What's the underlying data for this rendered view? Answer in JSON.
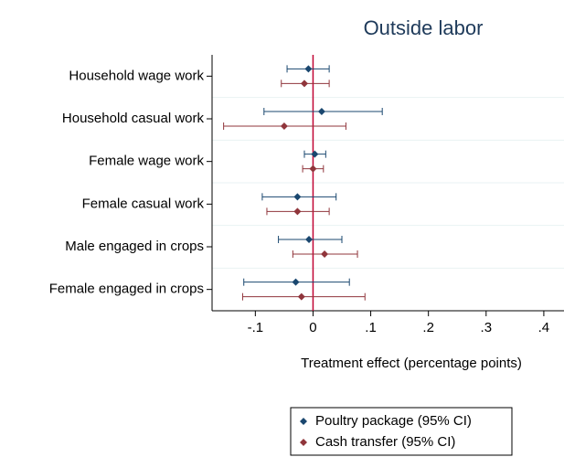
{
  "chart_data": {
    "type": "coefplot",
    "title": "Outside labor",
    "xlabel": "Treatment effect (percentage points)",
    "categories": [
      "Household wage work",
      "Household casual work",
      "Female wage work",
      "Female casual work",
      "Male engaged in crops",
      "Female engaged in crops"
    ],
    "series": [
      {
        "name": "Poultry package (95% CI)",
        "color": "#1a476f",
        "values": [
          -0.008,
          0.015,
          0.003,
          -0.027,
          -0.007,
          -0.03
        ],
        "lower": [
          -0.045,
          -0.085,
          -0.015,
          -0.088,
          -0.06,
          -0.12
        ],
        "upper": [
          0.028,
          0.12,
          0.022,
          0.04,
          0.05,
          0.063
        ]
      },
      {
        "name": "Cash transfer (95% CI)",
        "color": "#90353b",
        "values": [
          -0.015,
          -0.05,
          0.0,
          -0.027,
          0.02,
          -0.02
        ],
        "lower": [
          -0.055,
          -0.155,
          -0.018,
          -0.08,
          -0.035,
          -0.122
        ],
        "upper": [
          0.028,
          0.057,
          0.018,
          0.028,
          0.077,
          0.09
        ]
      }
    ],
    "xlim": [
      -0.175,
      0.435
    ],
    "xticks": [
      {
        "value": -0.1,
        "label": "-.1"
      },
      0,
      {
        "value": 0.1,
        "label": ".1"
      },
      {
        "value": 0.2,
        "label": ".2"
      },
      {
        "value": 0.3,
        "label": ".3"
      },
      {
        "value": 0.4,
        "label": ".4"
      }
    ],
    "reference_line": 0,
    "reference_color": "#c10534",
    "grid": true
  }
}
